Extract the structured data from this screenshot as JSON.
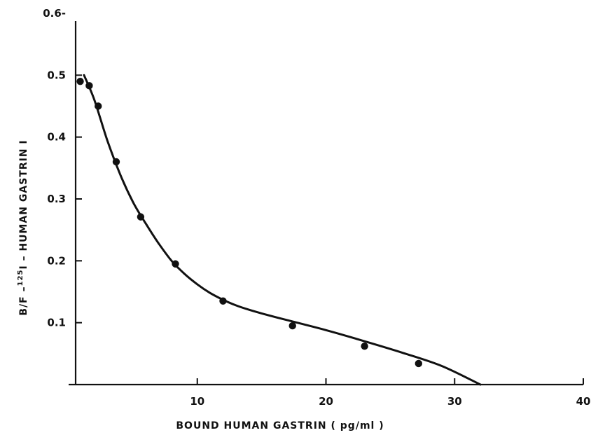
{
  "chart_data": {
    "type": "scatter",
    "title": "",
    "xlabel": "BOUND  HUMAN  GASTRIN  ( pg/ml )",
    "ylabel_prefix": "B/F –",
    "ylabel_sup": "125",
    "ylabel_suffix": "I – HUMAN  GASTRIN  I",
    "xlim": [
      0,
      40
    ],
    "ylim": [
      0,
      0.6
    ],
    "x_ticks": [
      {
        "value": 10,
        "label": "10"
      },
      {
        "value": 20,
        "label": "20"
      },
      {
        "value": 30,
        "label": "30"
      },
      {
        "value": 40,
        "label": "40"
      }
    ],
    "y_ticks": [
      {
        "value": 0.1,
        "label": "0.1"
      },
      {
        "value": 0.2,
        "label": "0.2"
      },
      {
        "value": 0.3,
        "label": "0.3"
      },
      {
        "value": 0.4,
        "label": "0.4"
      },
      {
        "value": 0.5,
        "label": "0.5"
      },
      {
        "value": 0.6,
        "label": "0.6-"
      }
    ],
    "grid": false,
    "series": [
      {
        "kind": "points",
        "x": [
          0.9,
          1.6,
          2.3,
          3.7,
          5.6,
          8.3,
          12.0,
          17.4,
          23.0,
          27.2
        ],
        "y": [
          0.49,
          0.483,
          0.45,
          0.36,
          0.271,
          0.195,
          0.135,
          0.095,
          0.062,
          0.034
        ]
      },
      {
        "kind": "fitted-curve",
        "x": [
          1.2,
          2.0,
          3.0,
          4.0,
          5.0,
          6.0,
          7.0,
          8.0,
          9.0,
          10.0,
          11.0,
          12.0,
          13.0,
          14.0,
          15.0,
          17.0,
          20.0,
          23.0,
          26.0,
          29.0,
          32.0
        ],
        "y": [
          0.5,
          0.46,
          0.395,
          0.34,
          0.295,
          0.26,
          0.228,
          0.2,
          0.179,
          0.162,
          0.148,
          0.137,
          0.128,
          0.121,
          0.115,
          0.104,
          0.088,
          0.07,
          0.051,
          0.03,
          0.0
        ]
      }
    ],
    "colors": {
      "ink": "#111111",
      "background": "#ffffff"
    }
  }
}
